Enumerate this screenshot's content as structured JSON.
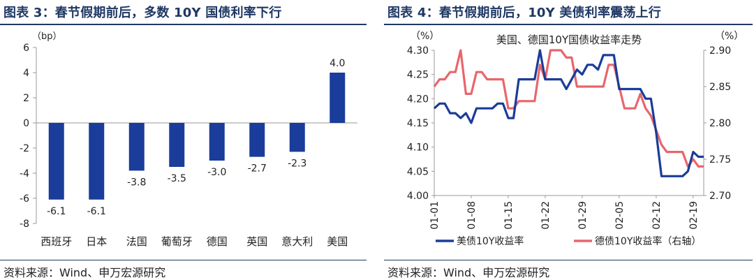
{
  "left": {
    "title": "图表 3：春节假期前后，多数 10Y 国债利率下行",
    "source": "资料来源：Wind、申万宏源研究"
  },
  "right": {
    "title": "图表 4：春节假期前后，10Y 美债利率震荡上行",
    "source": "资料来源：Wind、申万宏源研究"
  },
  "colors": {
    "bar": "#1a3c9a",
    "us": "#1a3c9a",
    "de": "#e8666b",
    "title": "#1f3864"
  },
  "chart_data": [
    {
      "type": "bar",
      "title": "",
      "ylabel": "（bp）",
      "ylim": [
        -8,
        6
      ],
      "yticks": [
        "6",
        "4",
        "2",
        "0",
        "-2",
        "-4",
        "-6",
        "-8"
      ],
      "categories": [
        "西班牙",
        "日本",
        "法国",
        "葡萄牙",
        "德国",
        "英国",
        "意大利",
        "美国"
      ],
      "values": [
        -6.1,
        -6.1,
        -3.8,
        -3.5,
        -3.0,
        -2.7,
        -2.3,
        4.0
      ],
      "data_labels": [
        "-6.1",
        "-6.1",
        "-3.8",
        "-3.5",
        "-3.0",
        "-2.7",
        "-2.3",
        "4.0"
      ],
      "grid": false
    },
    {
      "type": "line",
      "title": "美国、德国10Y国债收益率走势",
      "ylabel_left": "（%）",
      "ylabel_right": "（%）",
      "ylim_left": [
        4.0,
        4.3
      ],
      "ylim_right": [
        2.7,
        2.9
      ],
      "yticks_left": [
        "4.30",
        "4.25",
        "4.20",
        "4.15",
        "4.10",
        "4.05",
        "4.00"
      ],
      "yticks_right": [
        "2.90",
        "2.85",
        "2.80",
        "2.75",
        "2.70"
      ],
      "xticks": [
        "01-01",
        "01-08",
        "01-15",
        "01-22",
        "01-29",
        "02-05",
        "02-12",
        "02-19"
      ],
      "legend_position": "bottom",
      "grid": false,
      "series": [
        {
          "name": "美债10Y收益率",
          "axis": "left",
          "x": [
            "01-01",
            "01-02",
            "01-03",
            "01-04",
            "01-05",
            "01-06",
            "01-07",
            "01-08",
            "01-09",
            "01-10",
            "01-11",
            "01-12",
            "01-13",
            "01-14",
            "01-15",
            "01-16",
            "01-17",
            "01-18",
            "01-19",
            "01-20",
            "01-21",
            "01-22",
            "01-23",
            "01-24",
            "01-25",
            "01-26",
            "01-27",
            "01-28",
            "01-29",
            "01-30",
            "01-31",
            "02-01",
            "02-02",
            "02-03",
            "02-04",
            "02-05",
            "02-06",
            "02-07",
            "02-08",
            "02-09",
            "02-10",
            "02-11",
            "02-12",
            "02-13",
            "02-14",
            "02-15",
            "02-16",
            "02-17",
            "02-18",
            "02-19",
            "02-20",
            "02-21"
          ],
          "values": [
            4.18,
            4.19,
            4.19,
            4.17,
            4.17,
            4.16,
            4.17,
            4.15,
            4.18,
            4.18,
            4.18,
            4.18,
            4.19,
            4.19,
            4.16,
            4.16,
            4.24,
            4.24,
            4.24,
            4.24,
            4.3,
            4.24,
            4.24,
            4.24,
            4.24,
            4.22,
            4.24,
            4.26,
            4.25,
            4.27,
            4.27,
            4.26,
            4.29,
            4.29,
            4.29,
            4.22,
            4.22,
            4.22,
            4.22,
            4.22,
            4.2,
            4.2,
            4.13,
            4.04,
            4.04,
            4.04,
            4.04,
            4.04,
            4.05,
            4.09,
            4.08,
            4.08
          ]
        },
        {
          "name": "德债10Y收益率（右轴）",
          "axis": "right",
          "x": [
            "01-01",
            "01-02",
            "01-03",
            "01-04",
            "01-05",
            "01-06",
            "01-07",
            "01-08",
            "01-09",
            "01-10",
            "01-11",
            "01-12",
            "01-13",
            "01-14",
            "01-15",
            "01-16",
            "01-17",
            "01-18",
            "01-19",
            "01-20",
            "01-21",
            "01-22",
            "01-23",
            "01-24",
            "01-25",
            "01-26",
            "01-27",
            "01-28",
            "01-29",
            "01-30",
            "01-31",
            "02-01",
            "02-02",
            "02-03",
            "02-04",
            "02-05",
            "02-06",
            "02-07",
            "02-08",
            "02-09",
            "02-10",
            "02-11",
            "02-12",
            "02-13",
            "02-14",
            "02-15",
            "02-16",
            "02-17",
            "02-18",
            "02-19",
            "02-20",
            "02-21"
          ],
          "values": [
            2.85,
            2.86,
            2.86,
            2.87,
            2.87,
            2.9,
            2.84,
            2.84,
            2.87,
            2.87,
            2.86,
            2.86,
            2.86,
            2.86,
            2.82,
            2.82,
            2.83,
            2.83,
            2.83,
            2.83,
            2.88,
            2.86,
            2.9,
            2.9,
            2.9,
            2.89,
            2.89,
            2.85,
            2.85,
            2.85,
            2.85,
            2.85,
            2.85,
            2.88,
            2.88,
            2.85,
            2.82,
            2.82,
            2.82,
            2.84,
            2.82,
            2.81,
            2.79,
            2.77,
            2.76,
            2.76,
            2.76,
            2.76,
            2.74,
            2.75,
            2.74,
            2.74
          ]
        }
      ]
    }
  ]
}
